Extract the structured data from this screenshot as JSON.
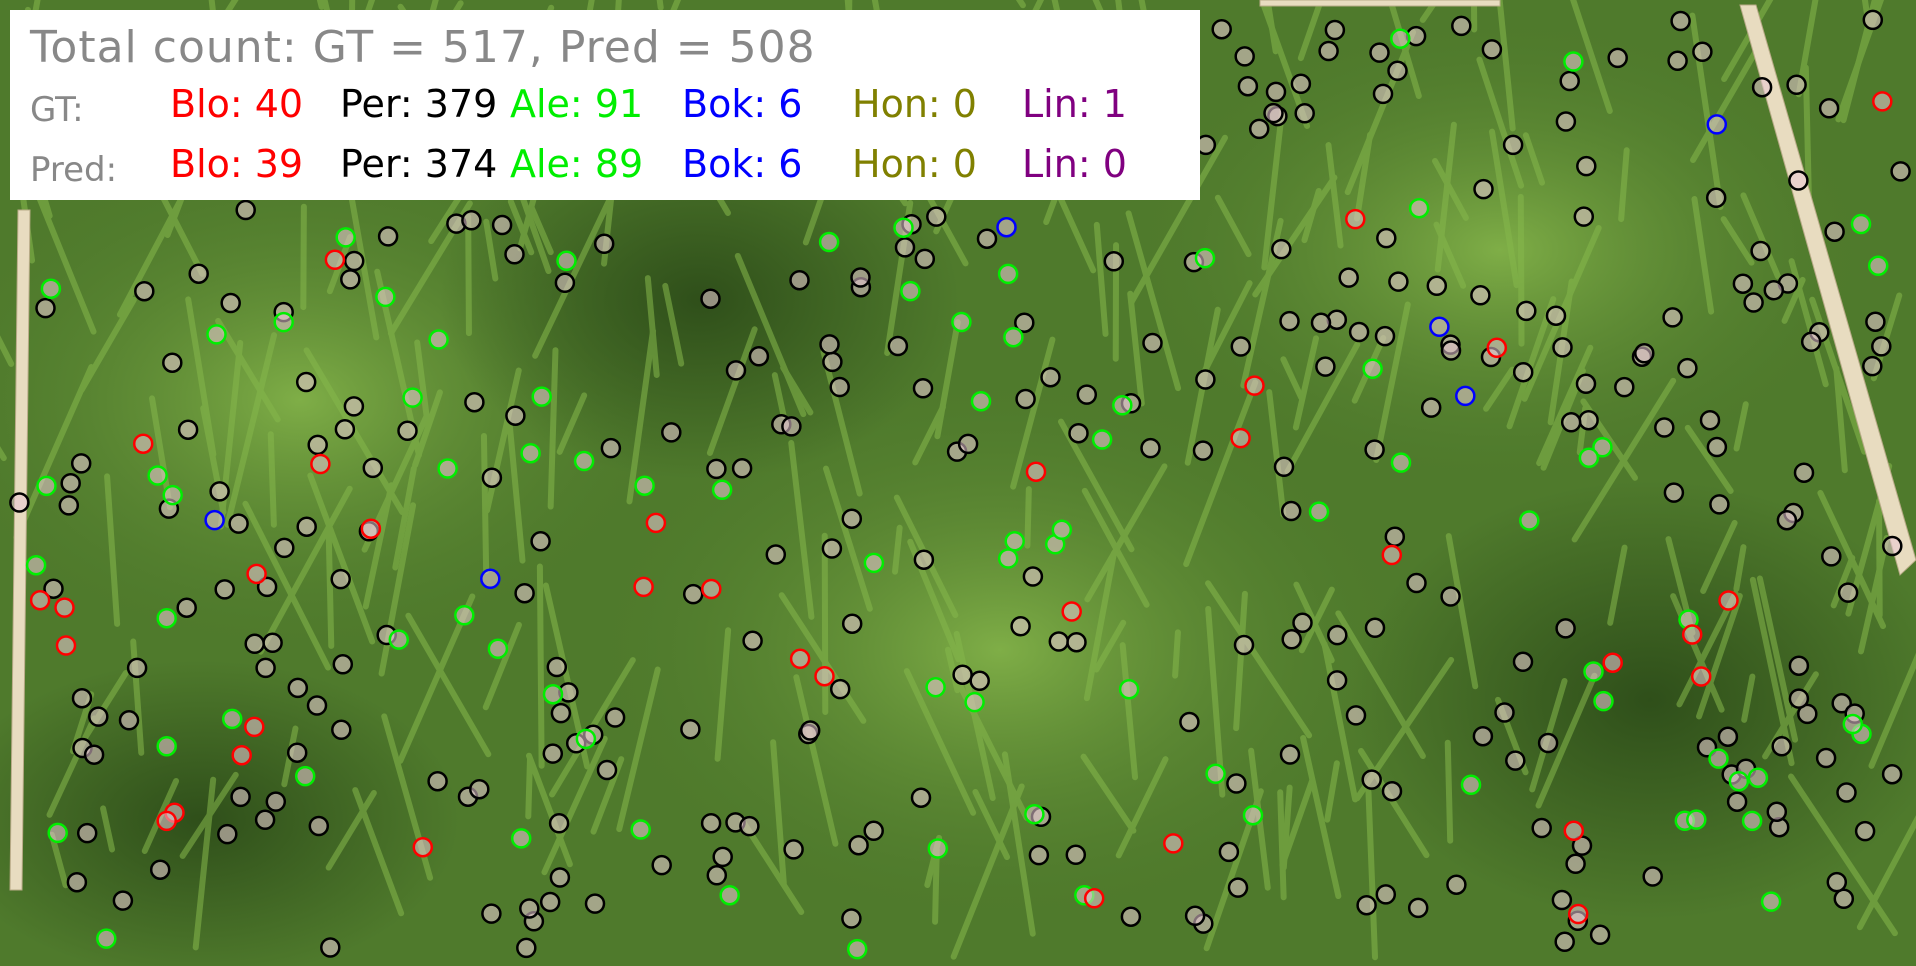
{
  "overlay": {
    "title": "Total count: GT = 517, Pred = 508",
    "rows": [
      {
        "label": "GT:",
        "cells": [
          {
            "text": "Blo: 40",
            "color": "#ff0000"
          },
          {
            "text": "Per: 379",
            "color": "#000000"
          },
          {
            "text": "Ale: 91",
            "color": "#00ee00"
          },
          {
            "text": "Bok: 6",
            "color": "#0000ff"
          },
          {
            "text": "Hon: 0",
            "color": "#808000"
          },
          {
            "text": "Lin: 1",
            "color": "#800080"
          }
        ]
      },
      {
        "label": "Pred:",
        "cells": [
          {
            "text": "Blo: 39",
            "color": "#ff0000"
          },
          {
            "text": "Per: 374",
            "color": "#000000"
          },
          {
            "text": "Ale: 89",
            "color": "#00ee00"
          },
          {
            "text": "Bok: 6",
            "color": "#0000ff"
          },
          {
            "text": "Hon: 0",
            "color": "#808000"
          },
          {
            "text": "Lin: 0",
            "color": "#800080"
          }
        ]
      }
    ]
  },
  "colors": {
    "grass": "#4f7a2c",
    "ruler": "#e8dcc0",
    "blo": "#ff0000",
    "per": "#000000",
    "ale": "#00ee00",
    "bok": "#0000ff"
  }
}
